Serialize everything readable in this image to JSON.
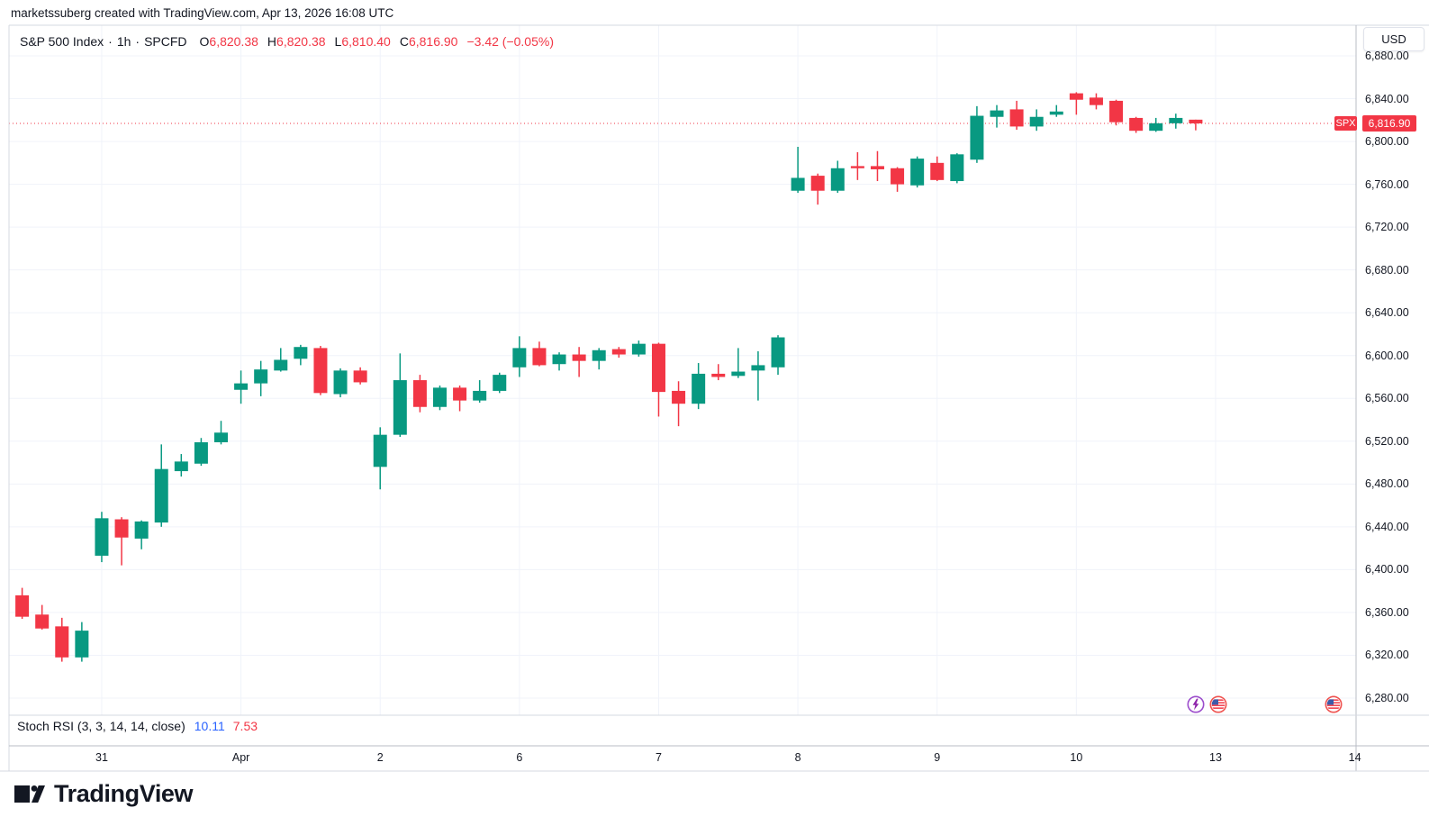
{
  "attribution": "marketssuberg created with TradingView.com, Apr 13, 2026 16:08 UTC",
  "legend": {
    "symbol": "S&P 500 Index",
    "separator": "·",
    "interval": "1h",
    "exchange": "SPCFD",
    "ohlc": [
      {
        "label": "O",
        "value": "6,820.38"
      },
      {
        "label": "H",
        "value": "6,820.38"
      },
      {
        "label": "L",
        "value": "6,810.40"
      },
      {
        "label": "C",
        "value": "6,816.90"
      }
    ],
    "change": "−3.42 (−0.05%)",
    "value_color": "#f23645"
  },
  "price_scale": {
    "currency_button": "USD",
    "ticks_formatted": [
      "6,880.00",
      "6,840.00",
      "6,800.00",
      "6,760.00",
      "6,720.00",
      "6,680.00",
      "6,640.00",
      "6,600.00",
      "6,560.00",
      "6,520.00",
      "6,480.00",
      "6,440.00",
      "6,400.00",
      "6,360.00",
      "6,320.00",
      "6,280.00"
    ],
    "price_label": {
      "symbol": "SPX",
      "value": "6,816.90",
      "price": 6816.9,
      "color": "#f23645"
    }
  },
  "indicator_pane": {
    "title": "Stoch RSI (3, 3, 14, 14, close)",
    "k_value": "10.11",
    "d_value": "7.53",
    "k_color": "#2962ff",
    "d_color": "#f23645"
  },
  "badges": [
    {
      "type": "lightning-event",
      "color": "#9c4dcc"
    },
    {
      "type": "us-economic-event"
    },
    {
      "type": "us-economic-event"
    }
  ],
  "logo": {
    "wordmark": "TradingView"
  },
  "chart_data": {
    "type": "candlestick",
    "title": "S&P 500 Index · 1h · SPCFD",
    "currency": "USD",
    "up_color": "#089981",
    "down_color": "#f23645",
    "grid": true,
    "ylim": [
      6262,
      6909
    ],
    "y_ticks": [
      6880,
      6840,
      6800,
      6760,
      6720,
      6680,
      6640,
      6600,
      6560,
      6520,
      6480,
      6440,
      6400,
      6360,
      6320,
      6280
    ],
    "current_price": 6816.9,
    "time_labels": [
      {
        "text": "31",
        "index": 4
      },
      {
        "text": "Apr",
        "index": 11
      },
      {
        "text": "2",
        "index": 18
      },
      {
        "text": "6",
        "index": 25
      },
      {
        "text": "7",
        "index": 32
      },
      {
        "text": "8",
        "index": 39
      },
      {
        "text": "9",
        "index": 46
      },
      {
        "text": "10",
        "index": 53
      },
      {
        "text": "13",
        "index": 60
      },
      {
        "text": "14",
        "index": 67
      }
    ],
    "candles": [
      [
        6376,
        6383,
        6354,
        6356
      ],
      [
        6358,
        6367,
        6344,
        6345
      ],
      [
        6347,
        6355,
        6314,
        6318
      ],
      [
        6318,
        6351,
        6314,
        6343
      ],
      [
        6413,
        6454,
        6407,
        6448
      ],
      [
        6447,
        6449,
        6404,
        6430
      ],
      [
        6429,
        6446,
        6419,
        6445
      ],
      [
        6444,
        6517,
        6440,
        6494
      ],
      [
        6492,
        6508,
        6487,
        6501
      ],
      [
        6499,
        6523,
        6497,
        6519
      ],
      [
        6519,
        6539,
        6517,
        6528
      ],
      [
        6568,
        6586,
        6555,
        6574
      ],
      [
        6574,
        6595,
        6562,
        6587
      ],
      [
        6586,
        6607,
        6585,
        6596
      ],
      [
        6597,
        6610,
        6591,
        6608
      ],
      [
        6607,
        6609,
        6563,
        6565
      ],
      [
        6564,
        6588,
        6561,
        6586
      ],
      [
        6586,
        6589,
        6573,
        6575
      ],
      [
        6496,
        6533,
        6475,
        6526
      ],
      [
        6526,
        6602,
        6524,
        6577
      ],
      [
        6577,
        6582,
        6547,
        6552
      ],
      [
        6552,
        6572,
        6549,
        6570
      ],
      [
        6570,
        6572,
        6548,
        6558
      ],
      [
        6558,
        6577,
        6556,
        6567
      ],
      [
        6567,
        6584,
        6565,
        6582
      ],
      [
        6589,
        6618,
        6580,
        6607
      ],
      [
        6607,
        6613,
        6590,
        6591
      ],
      [
        6592,
        6603,
        6586,
        6601
      ],
      [
        6601,
        6608,
        6580,
        6595
      ],
      [
        6595,
        6607,
        6587,
        6605
      ],
      [
        6606,
        6608,
        6598,
        6601
      ],
      [
        6601,
        6614,
        6599,
        6611
      ],
      [
        6611,
        6612,
        6543,
        6566
      ],
      [
        6567,
        6576,
        6534,
        6555
      ],
      [
        6555,
        6593,
        6550,
        6583
      ],
      [
        6583,
        6592,
        6577,
        6580
      ],
      [
        6581,
        6607,
        6579,
        6585
      ],
      [
        6586,
        6604,
        6558,
        6591
      ],
      [
        6589,
        6619,
        6582,
        6617
      ],
      [
        6754,
        6795,
        6752,
        6766
      ],
      [
        6768,
        6770,
        6741,
        6754
      ],
      [
        6754,
        6782,
        6752,
        6775
      ],
      [
        6777,
        6790,
        6764,
        6775
      ],
      [
        6777,
        6791,
        6763,
        6774
      ],
      [
        6775,
        6776,
        6753,
        6760
      ],
      [
        6759,
        6786,
        6757,
        6784
      ],
      [
        6780,
        6786,
        6763,
        6764
      ],
      [
        6763,
        6789,
        6761,
        6788
      ],
      [
        6783,
        6833,
        6780,
        6824
      ],
      [
        6823,
        6834,
        6813,
        6829
      ],
      [
        6830,
        6838,
        6811,
        6814
      ],
      [
        6814,
        6830,
        6810,
        6823
      ],
      [
        6825,
        6834,
        6823,
        6828
      ],
      [
        6845,
        6846,
        6825,
        6839
      ],
      [
        6841,
        6845,
        6830,
        6834
      ],
      [
        6838,
        6839,
        6815,
        6818
      ],
      [
        6822,
        6823,
        6808,
        6810
      ],
      [
        6810,
        6822,
        6809,
        6817
      ],
      [
        6817,
        6826,
        6812,
        6822
      ],
      [
        6820.38,
        6820.38,
        6810.4,
        6816.9
      ]
    ]
  }
}
